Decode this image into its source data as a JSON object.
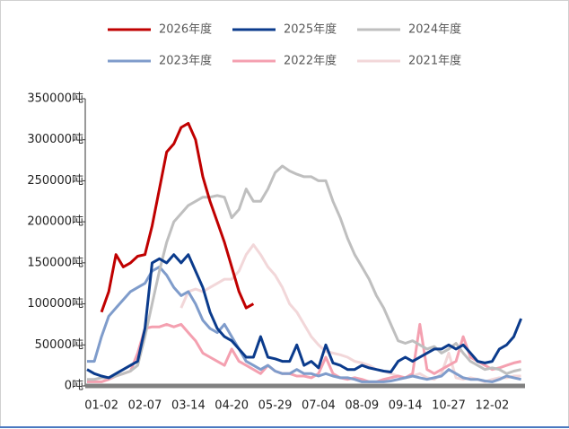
{
  "chart_data": {
    "type": "line",
    "x": [
      null,
      null,
      "01-02",
      null,
      null,
      null,
      null,
      null,
      "02-07",
      null,
      null,
      null,
      null,
      null,
      "03-14",
      null,
      null,
      null,
      null,
      null,
      "04-20",
      null,
      null,
      null,
      null,
      null,
      "05-29",
      null,
      null,
      null,
      null,
      null,
      "07-04",
      null,
      null,
      null,
      null,
      null,
      "08-09",
      null,
      null,
      null,
      null,
      null,
      "09-14",
      null,
      null,
      null,
      null,
      null,
      "10-27",
      null,
      null,
      null,
      null,
      null,
      "12-02",
      null,
      null,
      null,
      null
    ],
    "ylim": [
      0,
      350000
    ],
    "yticks": [
      {
        "value": 0,
        "label": "0吨"
      },
      {
        "value": 50000,
        "label": "50000吨"
      },
      {
        "value": 100000,
        "label": "100000吨"
      },
      {
        "value": 150000,
        "label": "150000吨"
      },
      {
        "value": 200000,
        "label": "200000吨"
      },
      {
        "value": 250000,
        "label": "250000吨"
      },
      {
        "value": 300000,
        "label": "300000吨"
      },
      {
        "value": 350000,
        "label": "350000吨"
      }
    ],
    "series": [
      {
        "name": "2026年度",
        "color": "#c00000",
        "values": [
          null,
          null,
          90000,
          115000,
          160000,
          145000,
          150000,
          158000,
          160000,
          195000,
          240000,
          285000,
          295000,
          315000,
          320000,
          300000,
          255000,
          225000,
          200000,
          175000,
          145000,
          115000,
          95000,
          100000,
          null,
          null,
          null,
          null,
          null,
          null,
          null,
          null,
          null,
          null,
          null,
          null,
          null,
          null,
          null,
          null,
          null,
          null,
          null,
          null,
          null,
          null,
          null,
          null,
          null,
          null,
          null,
          null,
          null,
          null,
          null,
          null,
          null,
          null,
          null,
          null,
          null
        ]
      },
      {
        "name": "2025年度",
        "color": "#0b3b8c",
        "values": [
          20000,
          15000,
          12000,
          10000,
          15000,
          20000,
          25000,
          30000,
          70000,
          150000,
          155000,
          150000,
          160000,
          150000,
          160000,
          140000,
          120000,
          90000,
          70000,
          60000,
          55000,
          45000,
          35000,
          35000,
          60000,
          35000,
          33000,
          30000,
          30000,
          50000,
          25000,
          30000,
          22000,
          50000,
          28000,
          25000,
          20000,
          20000,
          25000,
          22000,
          20000,
          18000,
          17000,
          30000,
          35000,
          30000,
          35000,
          40000,
          45000,
          45000,
          50000,
          45000,
          50000,
          40000,
          30000,
          28000,
          30000,
          45000,
          50000,
          60000,
          82000
        ]
      },
      {
        "name": "2024年度",
        "color": "#bfbfbf",
        "values": [
          8000,
          8000,
          10000,
          10000,
          12000,
          15000,
          18000,
          25000,
          60000,
          100000,
          140000,
          175000,
          200000,
          210000,
          220000,
          225000,
          230000,
          230000,
          232000,
          230000,
          205000,
          215000,
          240000,
          225000,
          225000,
          240000,
          260000,
          268000,
          262000,
          258000,
          255000,
          255000,
          250000,
          250000,
          225000,
          205000,
          180000,
          160000,
          145000,
          130000,
          110000,
          95000,
          75000,
          55000,
          52000,
          55000,
          50000,
          45000,
          48000,
          40000,
          45000,
          52000,
          40000,
          30000,
          25000,
          20000,
          22000,
          20000,
          15000,
          18000,
          20000
        ]
      },
      {
        "name": "2023年度",
        "color": "#7f9ccb",
        "values": [
          30000,
          30000,
          60000,
          85000,
          95000,
          105000,
          115000,
          120000,
          125000,
          140000,
          145000,
          135000,
          120000,
          110000,
          115000,
          100000,
          80000,
          70000,
          65000,
          75000,
          60000,
          45000,
          30000,
          25000,
          20000,
          25000,
          18000,
          15000,
          15000,
          20000,
          15000,
          15000,
          12000,
          15000,
          12000,
          10000,
          10000,
          8000,
          5000,
          5000,
          5000,
          5000,
          6000,
          8000,
          10000,
          12000,
          10000,
          8000,
          10000,
          12000,
          20000,
          15000,
          10000,
          8000,
          8000,
          6000,
          5000,
          8000,
          12000,
          10000,
          8000
        ]
      },
      {
        "name": "2022年度",
        "color": "#f4a0b0",
        "values": [
          5000,
          5000,
          5000,
          8000,
          12000,
          15000,
          18000,
          40000,
          70000,
          72000,
          72000,
          75000,
          72000,
          75000,
          65000,
          55000,
          40000,
          35000,
          30000,
          25000,
          45000,
          30000,
          25000,
          20000,
          15000,
          25000,
          18000,
          15000,
          15000,
          12000,
          12000,
          10000,
          15000,
          35000,
          15000,
          10000,
          8000,
          10000,
          8000,
          5000,
          5000,
          8000,
          10000,
          12000,
          10000,
          15000,
          75000,
          20000,
          15000,
          20000,
          25000,
          30000,
          60000,
          35000,
          30000,
          25000,
          20000,
          22000,
          25000,
          28000,
          30000
        ]
      },
      {
        "name": "2021年度",
        "color": "#f2d7d9",
        "values": [
          null,
          null,
          null,
          null,
          null,
          null,
          null,
          null,
          null,
          null,
          null,
          null,
          null,
          95000,
          115000,
          118000,
          115000,
          120000,
          125000,
          130000,
          130000,
          140000,
          160000,
          172000,
          160000,
          145000,
          135000,
          120000,
          100000,
          90000,
          75000,
          60000,
          50000,
          42000,
          40000,
          38000,
          35000,
          30000,
          28000,
          25000,
          20000,
          18000,
          15000,
          12000,
          10000,
          12000,
          15000,
          10000,
          8000,
          15000,
          40000,
          10000,
          8000,
          10000,
          8000,
          5000,
          8000,
          10000,
          10000,
          12000,
          12000
        ]
      }
    ]
  }
}
